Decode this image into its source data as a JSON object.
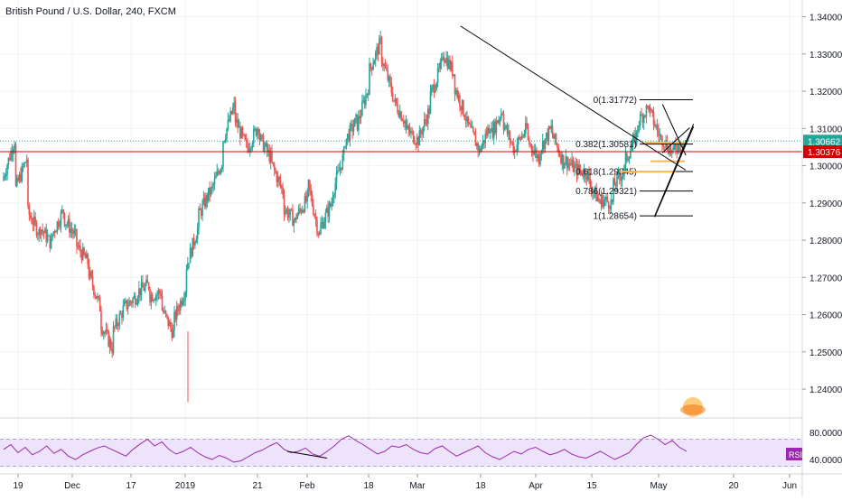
{
  "title": "British Pound / U.S. Dollar, 240, FXCM",
  "colors": {
    "up": "#26a69a",
    "down": "#ef5350",
    "trendline": "#000000",
    "price_line": "#d50000",
    "dotted_line": "#26a69a",
    "rsi": "#9c27b0",
    "rsi_band": "#ede3fb",
    "fib": "#000000",
    "fib_highlight": "#ffb74d",
    "price_badge": "#26a69a",
    "ref_badge": "#d50000"
  },
  "chart_data": {
    "type": "candlestick",
    "x_ticks": [
      "19",
      "Dec",
      "17",
      "2019",
      "21",
      "Feb",
      "18",
      "Mar",
      "18",
      "Apr",
      "15",
      "May",
      "20",
      "Jun"
    ],
    "y_ticks": [
      "1.34000",
      "1.33000",
      "1.32000",
      "1.31000",
      "1.30000",
      "1.29000",
      "1.28000",
      "1.27000",
      "1.26000",
      "1.25000",
      "1.24000"
    ],
    "ylim": [
      1.2325,
      1.3445
    ],
    "current_price": "1.30662",
    "current_price_value": 1.30662,
    "reference_price": "1.30376",
    "reference_price_value": 1.30376,
    "price_path": [
      [
        1.296,
        1.307
      ],
      [
        1.293,
        1.302
      ],
      [
        1.288,
        1.282
      ],
      [
        1.284,
        1.279
      ],
      [
        1.281,
        1.288
      ],
      [
        1.286,
        1.281
      ],
      [
        1.279,
        1.274
      ],
      [
        1.272,
        1.262
      ],
      [
        1.258,
        1.251
      ],
      [
        1.255,
        1.262
      ],
      [
        1.262,
        1.265
      ],
      [
        1.266,
        1.268
      ],
      [
        1.265,
        1.266
      ],
      [
        1.262,
        1.255
      ],
      [
        1.258,
        1.267
      ],
      [
        1.272,
        1.283
      ],
      [
        1.286,
        1.293
      ],
      [
        1.292,
        1.301
      ],
      [
        1.306,
        1.316
      ],
      [
        1.313,
        1.305
      ],
      [
        1.304,
        1.311
      ],
      [
        1.308,
        1.302
      ],
      [
        1.301,
        1.293
      ],
      [
        1.289,
        1.285
      ],
      [
        1.286,
        1.291
      ],
      [
        1.296,
        1.281
      ],
      [
        1.283,
        1.29
      ],
      [
        1.292,
        1.303
      ],
      [
        1.306,
        1.312
      ],
      [
        1.31,
        1.321
      ],
      [
        1.325,
        1.333
      ],
      [
        1.33,
        1.319
      ],
      [
        1.318,
        1.312
      ],
      [
        1.31,
        1.307
      ],
      [
        1.306,
        1.315
      ],
      [
        1.318,
        1.327
      ],
      [
        1.331,
        1.325
      ],
      [
        1.322,
        1.313
      ],
      [
        1.312,
        1.305
      ],
      [
        1.303,
        1.311
      ],
      [
        1.308,
        1.315
      ],
      [
        1.312,
        1.304
      ],
      [
        1.305,
        1.31
      ],
      [
        1.307,
        1.302
      ],
      [
        1.304,
        1.31
      ],
      [
        1.309,
        1.301
      ],
      [
        1.302,
        1.299
      ],
      [
        1.299,
        1.298
      ],
      [
        1.296,
        1.29
      ],
      [
        1.291,
        1.29
      ],
      [
        1.294,
        1.299
      ],
      [
        1.301,
        1.308
      ],
      [
        1.311,
        1.316
      ],
      [
        1.315,
        1.307
      ],
      [
        1.308,
        1.303
      ],
      [
        1.305,
        1.306
      ]
    ],
    "trendlines": [
      {
        "from": [
          "Mar 11",
          1.3375
        ],
        "to": [
          "May 8",
          1.2988
        ]
      },
      {
        "from": [
          "Apr 30",
          1.2865
        ],
        "to": [
          "May 10",
          1.3112
        ]
      },
      {
        "from": [
          "Apr 30",
          1.2862
        ],
        "to": [
          "May 10",
          1.3105
        ]
      },
      {
        "from": [
          "May 2",
          1.3165
        ],
        "to": [
          "May 8",
          1.3028
        ]
      },
      {
        "from": [
          "May 2",
          1.3035
        ],
        "to": [
          "May 9",
          1.3102
        ]
      }
    ],
    "fib_levels": [
      {
        "label": "0(1.31772)",
        "value": 1.31772
      },
      {
        "label": "0.382(1.30581)",
        "value": 1.30581
      },
      {
        "label": "0.618(1.29845)",
        "value": 1.29845
      },
      {
        "label": "0.786(1.29321)",
        "value": 1.29321
      },
      {
        "label": "1(1.28654)",
        "value": 1.28654
      }
    ],
    "rsi": {
      "label": "RSI",
      "y_ticks": [
        "80.0000",
        "40.0000"
      ],
      "tick_values": [
        80,
        40
      ],
      "ylim": [
        20,
        100
      ],
      "band": [
        70,
        30
      ],
      "values": [
        55,
        62,
        50,
        58,
        47,
        52,
        60,
        49,
        55,
        45,
        40,
        47,
        52,
        57,
        60,
        55,
        50,
        45,
        55,
        63,
        70,
        60,
        66,
        55,
        48,
        52,
        58,
        50,
        44,
        40,
        46,
        42,
        36,
        38,
        44,
        50,
        54,
        60,
        65,
        55,
        50,
        52,
        57,
        48,
        45,
        52,
        60,
        70,
        75,
        68,
        62,
        55,
        48,
        52,
        60,
        58,
        62,
        55,
        50,
        48,
        56,
        60,
        52,
        45,
        50,
        55,
        60,
        50,
        44,
        40,
        46,
        52,
        48,
        55,
        58,
        52,
        47,
        50,
        55,
        48,
        44,
        42,
        47,
        52,
        46,
        40,
        45,
        50,
        62,
        72,
        76,
        70,
        62,
        68,
        58,
        52
      ]
    }
  }
}
